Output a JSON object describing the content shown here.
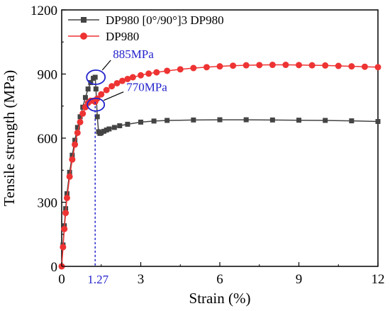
{
  "chart_data": {
    "type": "line",
    "xlabel": "Strain (%)",
    "ylabel": "Tensile strength (MPa)",
    "xlim": [
      0,
      12
    ],
    "ylim": [
      0,
      1200
    ],
    "xticks": [
      {
        "value": 0,
        "label": "0"
      },
      {
        "value": 3,
        "label": "3"
      },
      {
        "value": 6,
        "label": "6"
      },
      {
        "value": 9,
        "label": "9"
      },
      {
        "value": 12,
        "label": "12"
      }
    ],
    "yticks": [
      {
        "value": 0,
        "label": "0"
      },
      {
        "value": 300,
        "label": "300"
      },
      {
        "value": 600,
        "label": "600"
      },
      {
        "value": 900,
        "label": "900"
      },
      {
        "value": 1200,
        "label": "1200"
      }
    ],
    "legend_position": "top-left",
    "grid": false,
    "series": [
      {
        "name": "DP980 [0°/90°]3 DP980",
        "color": "#444444",
        "marker": "square",
        "x": [
          0,
          0.05,
          0.1,
          0.15,
          0.2,
          0.3,
          0.4,
          0.5,
          0.6,
          0.7,
          0.8,
          0.9,
          1.0,
          1.1,
          1.2,
          1.27,
          1.3,
          1.35,
          1.4,
          1.45,
          1.5,
          1.6,
          1.7,
          1.8,
          2.0,
          2.2,
          2.5,
          3.0,
          3.5,
          4.0,
          5.0,
          6.0,
          7.0,
          8.0,
          9.0,
          10.0,
          11.0,
          12.0
        ],
        "y": [
          0,
          100,
          190,
          270,
          340,
          440,
          520,
          590,
          650,
          700,
          745,
          790,
          830,
          860,
          880,
          885,
          830,
          700,
          630,
          622,
          625,
          632,
          638,
          643,
          650,
          658,
          665,
          675,
          680,
          683,
          685,
          686,
          686,
          685,
          684,
          683,
          681,
          678
        ]
      },
      {
        "name": "DP980",
        "color": "#ee3333",
        "marker": "circle",
        "x": [
          0,
          0.05,
          0.1,
          0.15,
          0.2,
          0.3,
          0.4,
          0.5,
          0.6,
          0.7,
          0.8,
          0.9,
          1.0,
          1.1,
          1.2,
          1.27,
          1.35,
          1.5,
          1.7,
          1.9,
          2.1,
          2.3,
          2.5,
          2.7,
          3.0,
          3.3,
          3.6,
          4.0,
          4.5,
          5.0,
          5.5,
          6.0,
          6.5,
          7.0,
          7.5,
          8.0,
          8.5,
          9.0,
          9.5,
          10.0,
          10.5,
          11.0,
          11.5,
          12.0
        ],
        "y": [
          0,
          90,
          175,
          250,
          320,
          420,
          500,
          570,
          625,
          675,
          715,
          745,
          765,
          775,
          775,
          770,
          785,
          805,
          825,
          843,
          857,
          868,
          877,
          885,
          894,
          902,
          908,
          915,
          922,
          928,
          932,
          936,
          939,
          941,
          942,
          943,
          943,
          942,
          941,
          940,
          938,
          936,
          934,
          932
        ]
      }
    ],
    "annotations": [
      {
        "text": "885MPa",
        "x": 1.27,
        "y": 885,
        "color": "#2222cc"
      },
      {
        "text": "770MPa",
        "x": 1.27,
        "y": 770,
        "color": "#2222cc"
      },
      {
        "text": "1.27",
        "x": 1.27,
        "y": 0,
        "color": "#2222cc"
      }
    ]
  }
}
